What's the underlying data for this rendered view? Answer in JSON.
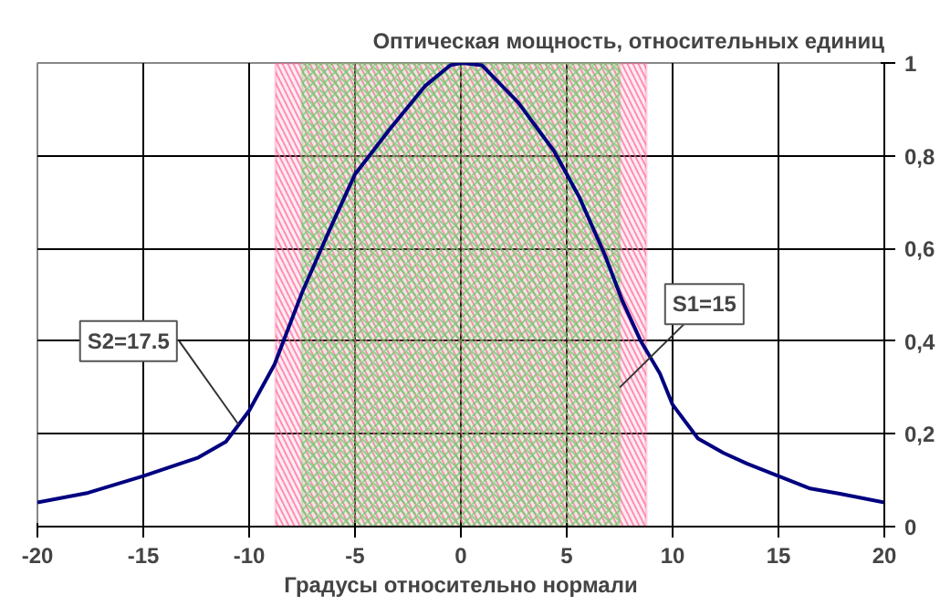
{
  "chart_data": {
    "type": "line",
    "ylabel": "Оптическая мощность, относительных единиц",
    "xlabel": "Градусы относительно нормали",
    "x": [
      -20,
      -17.6,
      -15,
      -12.4,
      -11.1,
      -10,
      -8.8,
      -7.5,
      -6.2,
      -5,
      -3.4,
      -1.7,
      -0.5,
      0,
      1,
      2.7,
      4.4,
      5.6,
      6.8,
      7.6,
      8.5,
      9.4,
      10,
      11.2,
      12.4,
      13.5,
      15,
      16.5,
      17.9,
      20
    ],
    "series": [
      {
        "color": "#000080",
        "values": [
          0.052,
          0.073,
          0.109,
          0.149,
          0.183,
          0.25,
          0.35,
          0.505,
          0.64,
          0.76,
          0.855,
          0.95,
          0.995,
          1.0,
          0.995,
          0.915,
          0.81,
          0.71,
          0.586,
          0.49,
          0.4,
          0.33,
          0.263,
          0.19,
          0.159,
          0.136,
          0.109,
          0.082,
          0.071,
          0.052
        ]
      }
    ],
    "xlim": [
      -20,
      20
    ],
    "ylim": [
      0,
      1
    ],
    "xticks": [
      -20,
      -15,
      -10,
      -5,
      0,
      5,
      10,
      15,
      20
    ],
    "yticks": [
      0,
      {
        "value": 0.2,
        "label": "0,2"
      },
      {
        "value": 0.4,
        "label": "0,4"
      },
      {
        "value": 0.6,
        "label": "0,6"
      },
      {
        "value": 0.8,
        "label": "0,8"
      },
      1
    ],
    "bands": [
      {
        "axis": "x",
        "from": -8.75,
        "to": 8.75,
        "color": "#ff6699"
      },
      {
        "axis": "x",
        "from": -7.5,
        "to": 7.5,
        "color": "#66cc66"
      }
    ],
    "annotations": [
      {
        "text": "S2=17.5",
        "x": -10.5,
        "y": 0.22
      },
      {
        "text": "S1=15",
        "x": 7.5,
        "y": 0.3
      }
    ],
    "grid": true,
    "line_style": "solid"
  }
}
